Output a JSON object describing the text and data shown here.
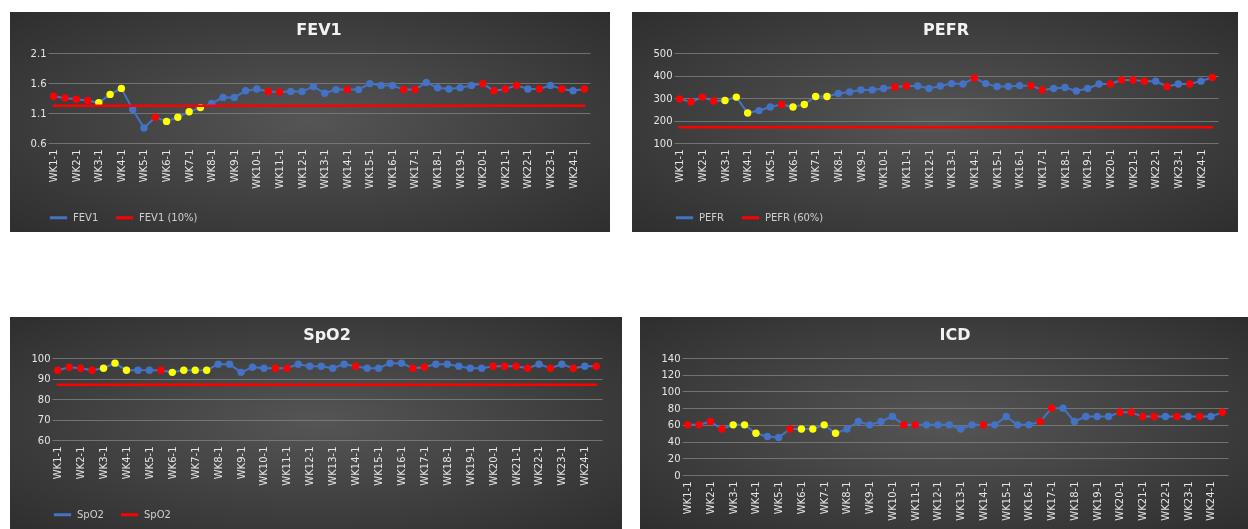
{
  "chart_data": [
    {
      "type": "line",
      "title": "FEV1",
      "categories": [
        "WK1-1",
        null,
        "WK2-1",
        null,
        "WK3-1",
        null,
        "WK4-1",
        null,
        "WK5-1",
        null,
        "WK6-1",
        null,
        "WK7-1",
        null,
        "WK8-1",
        null,
        "WK9-1",
        null,
        "WK10-1",
        null,
        "WK11-1",
        null,
        "WK12-1",
        null,
        "WK13-1",
        null,
        "WK14-1",
        null,
        "WK15-1",
        null,
        "WK16-1",
        null,
        "WK17-1",
        null,
        "WK18-1",
        null,
        "WK19-1",
        null,
        "WK20-1",
        null,
        "WK21-1",
        null,
        "WK22-1",
        null,
        "WK23-1",
        null,
        "WK24-1",
        null
      ],
      "ylim": [
        0.6,
        2.1
      ],
      "yticks": [
        0.6,
        1.1,
        1.6,
        2.1
      ],
      "grid": "y",
      "legend": "bottom",
      "marker": "circle",
      "series": [
        {
          "name": "FEV1",
          "color": "#4472c4",
          "values": [
            1.38,
            1.35,
            1.33,
            1.31,
            1.27,
            1.41,
            1.51,
            1.16,
            0.85,
            1.03,
            0.96,
            1.03,
            1.12,
            1.19,
            1.26,
            1.36,
            1.36,
            1.47,
            1.5,
            1.46,
            1.45,
            1.46,
            1.46,
            1.54,
            1.43,
            1.49,
            1.49,
            1.49,
            1.59,
            1.56,
            1.56,
            1.49,
            1.49,
            1.61,
            1.52,
            1.5,
            1.52,
            1.56,
            1.59,
            1.47,
            1.5,
            1.56,
            1.5,
            1.5,
            1.56,
            1.5,
            1.47,
            1.5
          ],
          "colors": [
            "#ff0000",
            "#ff0000",
            "#ff0000",
            "#ff0000",
            "#ffff00",
            "#ffff00",
            "#ffff00",
            "#4472c4",
            "#4472c4",
            "#ff0000",
            "#ffff00",
            "#ffff00",
            "#ffff00",
            "#ffff00",
            "#4472c4",
            "#4472c4",
            "#4472c4",
            "#4472c4",
            "#4472c4",
            "#ff0000",
            "#ff0000",
            "#4472c4",
            "#4472c4",
            "#4472c4",
            "#4472c4",
            "#4472c4",
            "#ff0000",
            "#4472c4",
            "#4472c4",
            "#4472c4",
            "#4472c4",
            "#ff0000",
            "#ff0000",
            "#4472c4",
            "#4472c4",
            "#4472c4",
            "#4472c4",
            "#4472c4",
            "#ff0000",
            "#ff0000",
            "#ff0000",
            "#ff0000",
            "#4472c4",
            "#ff0000",
            "#4472c4",
            "#ff0000",
            "#4472c4",
            "#ff0000"
          ]
        },
        {
          "name": "FEV1 (10%)",
          "color": "#ff0000",
          "marker": "none",
          "values": [
            1.22,
            1.22,
            1.22,
            1.22,
            1.22,
            1.22,
            1.22,
            1.22,
            1.22,
            1.22,
            1.22,
            1.22,
            1.22,
            1.22,
            1.22,
            1.22,
            1.22,
            1.22,
            1.22,
            1.22,
            1.22,
            1.22,
            1.22,
            1.22,
            1.22,
            1.22,
            1.22,
            1.22,
            1.22,
            1.22,
            1.22,
            1.22,
            1.22,
            1.22,
            1.22,
            1.22,
            1.22,
            1.22,
            1.22,
            1.22,
            1.22,
            1.22,
            1.22,
            1.22,
            1.22,
            1.22,
            1.22,
            1.22
          ]
        }
      ]
    },
    {
      "type": "line",
      "title": "PEFR",
      "categories": [
        "WK1-1",
        null,
        "WK2-1",
        null,
        "WK3-1",
        null,
        "WK4-1",
        null,
        "WK5-1",
        null,
        "WK6-1",
        null,
        "WK7-1",
        null,
        "WK8-1",
        null,
        "WK9-1",
        null,
        "WK10-1",
        null,
        "WK11-1",
        null,
        "WK12-1",
        null,
        "WK13-1",
        null,
        "WK14-1",
        null,
        "WK15-1",
        null,
        "WK16-1",
        null,
        "WK17-1",
        null,
        "WK18-1",
        null,
        "WK19-1",
        null,
        "WK20-1",
        null,
        "WK21-1",
        null,
        "WK22-1",
        null,
        "WK23-1",
        null,
        "WK24-1",
        null
      ],
      "ylim": [
        100,
        500
      ],
      "yticks": [
        100,
        200,
        300,
        400,
        500
      ],
      "grid": "y",
      "legend": "bottom",
      "marker": "circle",
      "series": [
        {
          "name": "PEFR",
          "color": "#4472c4",
          "values": [
            296,
            282,
            304,
            287,
            289,
            304,
            233,
            244,
            260,
            271,
            260,
            271,
            307,
            307,
            320,
            327,
            336,
            336,
            342,
            349,
            353,
            353,
            342,
            353,
            364,
            362,
            389,
            364,
            351,
            351,
            355,
            355,
            336,
            342,
            347,
            331,
            342,
            362,
            362,
            380,
            380,
            375,
            375,
            351,
            362,
            362,
            375,
            391
          ],
          "colors": [
            "#ff0000",
            "#ff0000",
            "#ff0000",
            "#ff0000",
            "#ffff00",
            "#ffff00",
            "#ffff00",
            "#4472c4",
            "#4472c4",
            "#ff0000",
            "#ffff00",
            "#ffff00",
            "#ffff00",
            "#ffff00",
            "#4472c4",
            "#4472c4",
            "#4472c4",
            "#4472c4",
            "#4472c4",
            "#ff0000",
            "#ff0000",
            "#4472c4",
            "#4472c4",
            "#4472c4",
            "#4472c4",
            "#4472c4",
            "#ff0000",
            "#4472c4",
            "#4472c4",
            "#4472c4",
            "#4472c4",
            "#ff0000",
            "#ff0000",
            "#4472c4",
            "#4472c4",
            "#4472c4",
            "#4472c4",
            "#4472c4",
            "#ff0000",
            "#ff0000",
            "#ff0000",
            "#ff0000",
            "#4472c4",
            "#ff0000",
            "#4472c4",
            "#ff0000",
            "#4472c4",
            "#ff0000"
          ]
        },
        {
          "name": "PEFR (60%)",
          "color": "#ff0000",
          "marker": "none",
          "values": [
            170,
            170,
            170,
            170,
            170,
            170,
            170,
            170,
            170,
            170,
            170,
            170,
            170,
            170,
            170,
            170,
            170,
            170,
            170,
            170,
            170,
            170,
            170,
            170,
            170,
            170,
            170,
            170,
            170,
            170,
            170,
            170,
            170,
            170,
            170,
            170,
            170,
            170,
            170,
            170,
            170,
            170,
            170,
            170,
            170,
            170,
            170,
            170
          ]
        }
      ]
    },
    {
      "type": "line",
      "title": "SpO2",
      "categories": [
        "WK1-1",
        null,
        "WK2-1",
        null,
        "WK3-1",
        null,
        "WK4-1",
        null,
        "WK5-1",
        null,
        "WK6-1",
        null,
        "WK7-1",
        null,
        "WK8-1",
        null,
        "WK9-1",
        null,
        "WK10-1",
        null,
        "WK11-1",
        null,
        "WK12-1",
        null,
        "WK13-1",
        null,
        "WK14-1",
        null,
        "WK15-1",
        null,
        "WK16-1",
        null,
        "WK17-1",
        null,
        "WK18-1",
        null,
        "WK19-1",
        null,
        "WK20-1",
        null,
        "WK21-1",
        null,
        "WK22-1",
        null,
        "WK23-1",
        null,
        "WK24-1",
        null
      ],
      "ylim": [
        60,
        100
      ],
      "yticks": [
        60,
        70,
        80,
        90,
        100
      ],
      "grid": "y",
      "legend": "bottom",
      "marker": "circle",
      "series": [
        {
          "name": "SpO2",
          "color": "#4472c4",
          "values": [
            94,
            95.5,
            95,
            94,
            95,
            97.5,
            94,
            94,
            94,
            94,
            93,
            94,
            94,
            94,
            97,
            97,
            93,
            95.5,
            95,
            95,
            95,
            97,
            96,
            96,
            95,
            97,
            96,
            95,
            95,
            97.5,
            97.5,
            95,
            95.5,
            97,
            97,
            96,
            95,
            95,
            96,
            96,
            96,
            95,
            97,
            95,
            97,
            95,
            96,
            96
          ],
          "colors": [
            "#ff0000",
            "#ff0000",
            "#ff0000",
            "#ff0000",
            "#ffff00",
            "#ffff00",
            "#ffff00",
            "#4472c4",
            "#4472c4",
            "#ff0000",
            "#ffff00",
            "#ffff00",
            "#ffff00",
            "#ffff00",
            "#4472c4",
            "#4472c4",
            "#4472c4",
            "#4472c4",
            "#4472c4",
            "#ff0000",
            "#ff0000",
            "#4472c4",
            "#4472c4",
            "#4472c4",
            "#4472c4",
            "#4472c4",
            "#ff0000",
            "#4472c4",
            "#4472c4",
            "#4472c4",
            "#4472c4",
            "#ff0000",
            "#ff0000",
            "#4472c4",
            "#4472c4",
            "#4472c4",
            "#4472c4",
            "#4472c4",
            "#ff0000",
            "#ff0000",
            "#ff0000",
            "#ff0000",
            "#4472c4",
            "#ff0000",
            "#4472c4",
            "#ff0000",
            "#4472c4",
            "#ff0000"
          ]
        },
        {
          "name": "SpO2",
          "color": "#ff0000",
          "marker": "none",
          "values": [
            87,
            87,
            87,
            87,
            87,
            87,
            87,
            87,
            87,
            87,
            87,
            87,
            87,
            87,
            87,
            87,
            87,
            87,
            87,
            87,
            87,
            87,
            87,
            87,
            87,
            87,
            87,
            87,
            87,
            87,
            87,
            87,
            87,
            87,
            87,
            87,
            87,
            87,
            87,
            87,
            87,
            87,
            87,
            87,
            87,
            87,
            87,
            87
          ]
        }
      ]
    },
    {
      "type": "line",
      "title": "ICD",
      "categories": [
        "WK1-1",
        null,
        "WK2-1",
        null,
        "WK3-1",
        null,
        "WK4-1",
        null,
        "WK5-1",
        null,
        "WK6-1",
        null,
        "WK7-1",
        null,
        "WK8-1",
        null,
        "WK9-1",
        null,
        "WK10-1",
        null,
        "WK11-1",
        null,
        "WK12-1",
        null,
        "WK13-1",
        null,
        "WK14-1",
        null,
        "WK15-1",
        null,
        "WK16-1",
        null,
        "WK17-1",
        null,
        "WK18-1",
        null,
        "WK19-1",
        null,
        "WK20-1",
        null,
        "WK21-1",
        null,
        "WK22-1",
        null,
        "WK23-1",
        null,
        "WK24-1",
        null
      ],
      "ylim": [
        0,
        140
      ],
      "yticks": [
        0,
        20,
        40,
        60,
        80,
        100,
        120,
        140
      ],
      "grid": "y",
      "marker": "circle",
      "series": [
        {
          "color": "#4472c4",
          "values": [
            60,
            60,
            64,
            55,
            60,
            60,
            50,
            46,
            45,
            55,
            55,
            55,
            60,
            50,
            55,
            64,
            60,
            64,
            70,
            60,
            60,
            60,
            60,
            60,
            55,
            60,
            60,
            60,
            70,
            60,
            60,
            64,
            80,
            80,
            64,
            70,
            70,
            70,
            75,
            75,
            70,
            70,
            70,
            70,
            70,
            70,
            70,
            75
          ],
          "colors": [
            "#ff0000",
            "#ff0000",
            "#ff0000",
            "#ff0000",
            "#ffff00",
            "#ffff00",
            "#ffff00",
            "#4472c4",
            "#4472c4",
            "#ff0000",
            "#ffff00",
            "#ffff00",
            "#ffff00",
            "#ffff00",
            "#4472c4",
            "#4472c4",
            "#4472c4",
            "#4472c4",
            "#4472c4",
            "#ff0000",
            "#ff0000",
            "#4472c4",
            "#4472c4",
            "#4472c4",
            "#4472c4",
            "#4472c4",
            "#ff0000",
            "#4472c4",
            "#4472c4",
            "#4472c4",
            "#4472c4",
            "#ff0000",
            "#ff0000",
            "#4472c4",
            "#4472c4",
            "#4472c4",
            "#4472c4",
            "#4472c4",
            "#ff0000",
            "#ff0000",
            "#ff0000",
            "#ff0000",
            "#4472c4",
            "#ff0000",
            "#4472c4",
            "#ff0000",
            "#4472c4",
            "#ff0000"
          ]
        }
      ]
    }
  ]
}
